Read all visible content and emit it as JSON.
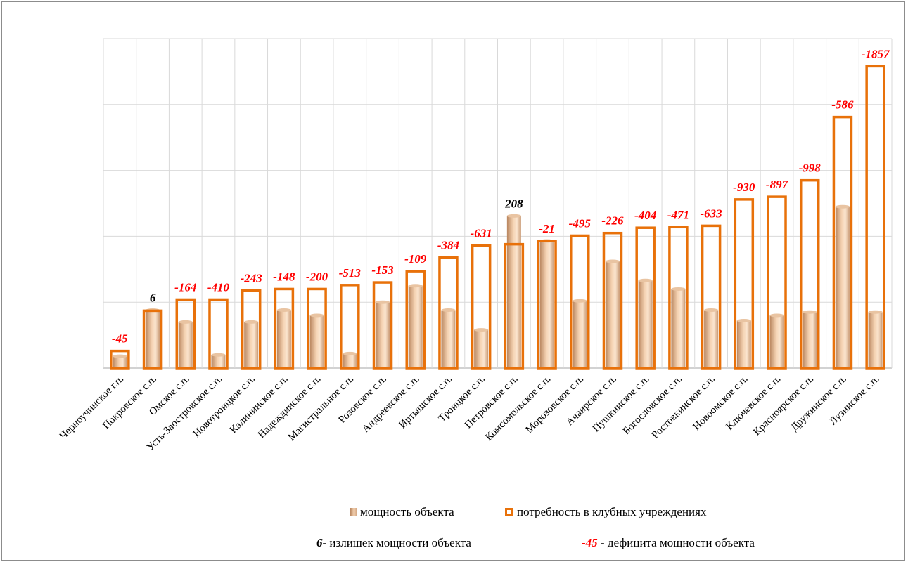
{
  "chart_data": {
    "type": "bar",
    "categories": [
      "Черноучинское г.п.",
      "Покровское с.п.",
      "Омское с.п.",
      "Усть-Заостровское с.п.",
      "Новотроицкое с.п.",
      "Калининское с.п.",
      "Надеждинское с.п.",
      "Магистральное с.п.",
      "Розовское с.п.",
      "Андреевское с.п.",
      "Иртышское с.п.",
      "Троицкое с.п.",
      "Петровское с.п.",
      "Комсомольское с.п.",
      "Морозовское с.п.",
      "Ачаирское с.п.",
      "Пушкинское с.п.",
      "Богословское с.п.",
      "Ростовкинское с.п.",
      "Новоомское с.п.",
      "Ключевское с.п.",
      "Красноярское с.п.",
      "Дружинское с.п.",
      "Лузинское с.п."
    ],
    "series": [
      {
        "name": "мощность объекта",
        "values": [
          18,
          88,
          70,
          20,
          70,
          88,
          80,
          22,
          100,
          125,
          88,
          58,
          231,
          193,
          102,
          162,
          133,
          120,
          88,
          72,
          80,
          85,
          245,
          85
        ]
      },
      {
        "name": "потребность в клубных учреждениях",
        "values": [
          26,
          87,
          104,
          104,
          118,
          120,
          120,
          126,
          130,
          147,
          168,
          186,
          188,
          193,
          201,
          205,
          213,
          214,
          216,
          256,
          260,
          285,
          381,
          458
        ]
      }
    ],
    "data_labels": [
      "-45",
      "6",
      "-164",
      "-410",
      "-243",
      "-148",
      "-200",
      "-513",
      "-153",
      "-109",
      "-384",
      "-631",
      "208",
      "-21",
      "-495",
      "-226",
      "-404",
      "-471",
      "-633",
      "-930",
      "-897",
      "-998",
      "-586",
      "-1857"
    ],
    "label_is_surplus": [
      false,
      true,
      false,
      false,
      false,
      false,
      false,
      false,
      false,
      false,
      false,
      false,
      true,
      false,
      false,
      false,
      false,
      false,
      false,
      false,
      false,
      false,
      false,
      false
    ],
    "ylim": [
      0,
      500
    ],
    "grid": true,
    "legend_position": "bottom",
    "colors": {
      "capacity_light": "#f5d3b3",
      "capacity_dark": "#b9865f",
      "need_outline": "#e8710a",
      "deficit_label": "#ff0000",
      "surplus_label": "#000000",
      "grid": "#d9d9d9"
    }
  },
  "legend": {
    "capacity_label": "мощность объекта",
    "need_label": "потребность в клубных учреждениях"
  },
  "notes": {
    "surplus_number": "6",
    "surplus_text": "- излишек мощности объекта",
    "deficit_number": "-45",
    "deficit_text": " - дефицита  мощности объекта"
  }
}
